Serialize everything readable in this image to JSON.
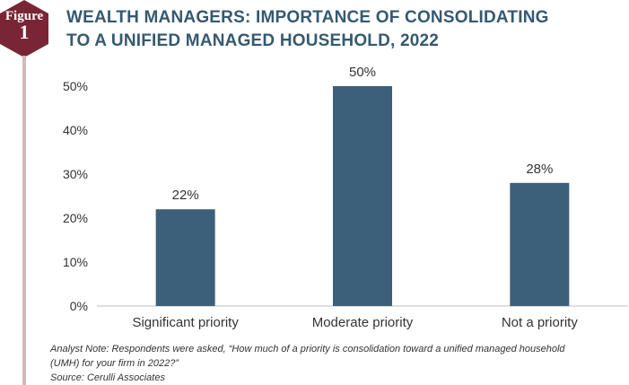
{
  "badge": {
    "word": "Figure",
    "number": "1"
  },
  "title_lines": [
    "WEALTH MANAGERS: IMPORTANCE OF CONSOLIDATING",
    "TO A UNIFIED MANAGED HOUSEHOLD, 2022"
  ],
  "colors": {
    "bar": "#3c6079",
    "title": "#35596f",
    "badge": "#7a2535",
    "rule": "#d3b8bc"
  },
  "chart_data": {
    "type": "bar",
    "title": "WEALTH MANAGERS: IMPORTANCE OF CONSOLIDATING TO A UNIFIED MANAGED HOUSEHOLD, 2022",
    "categories": [
      "Significant priority",
      "Moderate priority",
      "Not a priority"
    ],
    "values": [
      22,
      50,
      28
    ],
    "data_labels": [
      "22%",
      "50%",
      "28%"
    ],
    "yticks": [
      0,
      10,
      20,
      30,
      40,
      50
    ],
    "ytick_labels": [
      "0%",
      "10%",
      "20%",
      "30%",
      "40%",
      "50%"
    ],
    "ylim": [
      0,
      50
    ],
    "xlabel": "",
    "ylabel": ""
  },
  "notes": {
    "analyst_line1": "Analyst Note: Respondents were asked, “How much of a priority is consolidation toward a unified managed household",
    "analyst_line2": "(UMH) for your firm in 2022?”",
    "source": "Source: Cerulli Associates"
  }
}
